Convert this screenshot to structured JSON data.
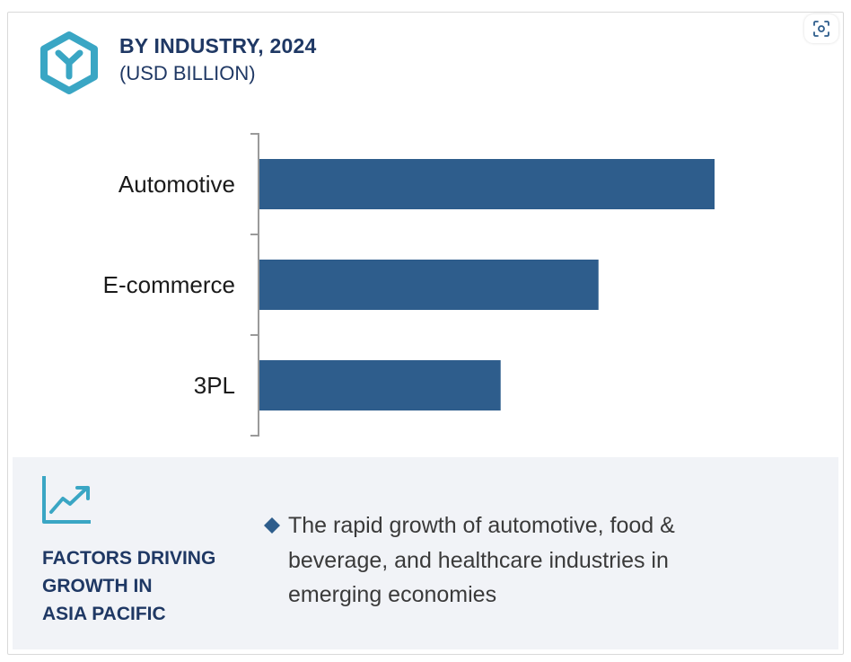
{
  "header": {
    "title": "BY INDUSTRY, 2024",
    "subtitle": "(USD BILLION)"
  },
  "icons": {
    "logo": "hexagon-y-logo-icon",
    "focus": "focus-camera-icon",
    "trend": "line-chart-trend-icon",
    "bullet": "diamond-bullet-icon"
  },
  "colors": {
    "bar": "#2e5d8c",
    "heading": "#1f3864",
    "logo": "#3aa6c4",
    "panel": "#f1f3f7"
  },
  "chart_data": {
    "type": "bar",
    "orientation": "horizontal",
    "categories": [
      "Automotive",
      "E-commerce",
      "3PL"
    ],
    "values": [
      1.0,
      0.745,
      0.53
    ],
    "value_note": "relative values, no axis scale printed",
    "xlim": [
      0,
      1.0
    ],
    "grid": false,
    "legend": "none"
  },
  "factors": {
    "heading_lines": [
      "FACTORS DRIVING",
      "GROWTH IN",
      "ASIA PACIFIC"
    ],
    "items": [
      "The rapid growth of automotive, food & beverage, and healthcare industries in emerging economies"
    ]
  }
}
